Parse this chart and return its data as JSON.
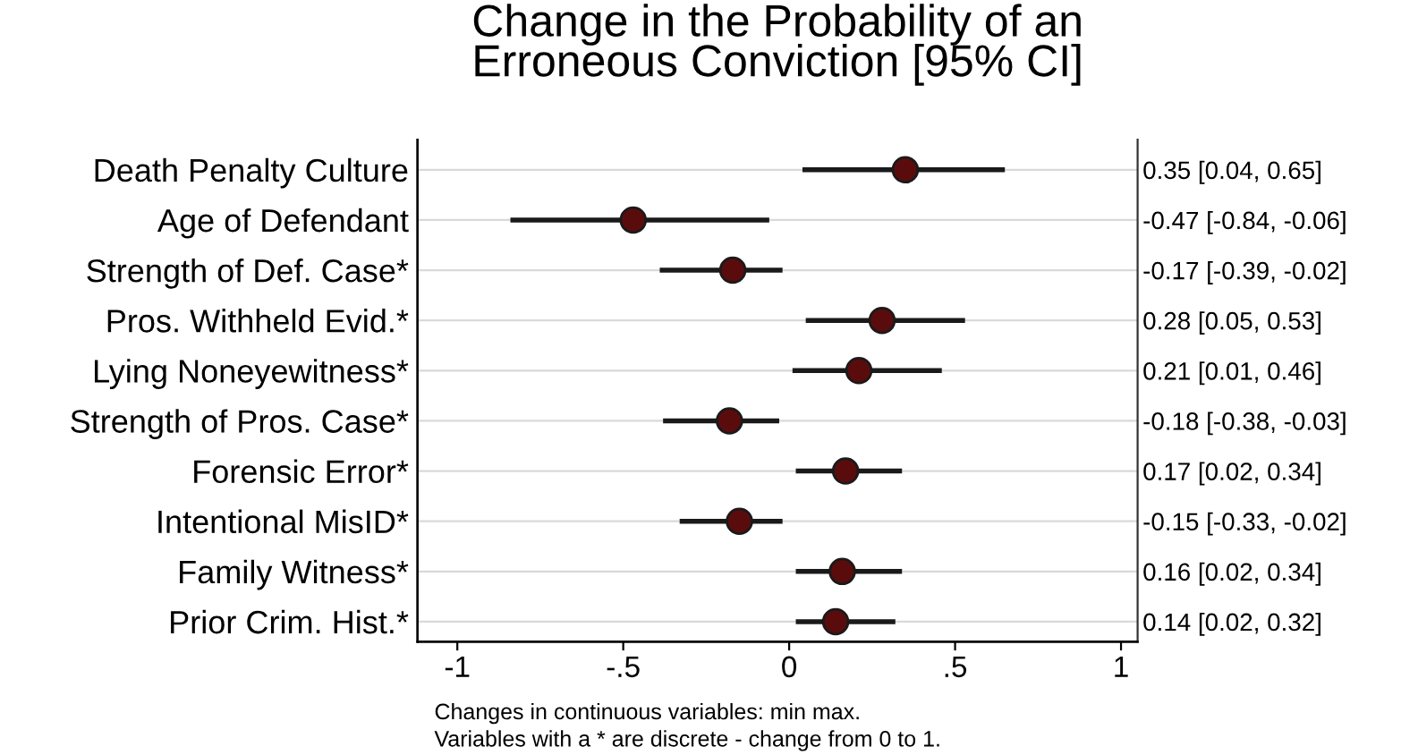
{
  "chart_data": {
    "type": "scatter",
    "orientation": "horizontal",
    "title": "Change in the Probability of an\nErroneous Conviction [95% CI]",
    "categories": [
      "Death Penalty Culture",
      "Age of Defendant",
      "Strength of Def. Case*",
      "Pros. Withheld Evid.*",
      "Lying Noneyewitness*",
      "Strength of Pros. Case*",
      "Forensic Error*",
      "Intentional MisID*",
      "Family Witness*",
      "Prior Crim. Hist.*"
    ],
    "values": [
      0.35,
      -0.47,
      -0.17,
      0.28,
      0.21,
      -0.18,
      0.17,
      -0.15,
      0.16,
      0.14
    ],
    "errors": [
      [
        0.04,
        0.65
      ],
      [
        -0.84,
        -0.06
      ],
      [
        -0.39,
        -0.02
      ],
      [
        0.05,
        0.53
      ],
      [
        0.01,
        0.46
      ],
      [
        -0.38,
        -0.03
      ],
      [
        0.02,
        0.34
      ],
      [
        -0.33,
        -0.02
      ],
      [
        0.02,
        0.34
      ],
      [
        0.02,
        0.32
      ]
    ],
    "y2_categories": [
      "0.35 [0.04, 0.65]",
      "-0.47 [-0.84, -0.06]",
      "-0.17 [-0.39, -0.02]",
      "0.28 [0.05, 0.53]",
      "0.21 [0.01, 0.46]",
      "-0.18 [-0.38, -0.03]",
      "0.17 [0.02, 0.34]",
      "-0.15 [-0.33, -0.02]",
      "0.16 [0.02, 0.34]",
      "0.14 [0.02, 0.32]"
    ],
    "color": "#5a0c0c",
    "xlim": [
      -1.12,
      1.05
    ],
    "xticks": [
      -1,
      {
        "value": -0.5,
        "label": "-.5"
      },
      0,
      {
        "value": 0.5,
        "label": ".5"
      },
      1
    ],
    "grid": "y",
    "marker": "circle",
    "annotations": [
      "Changes in continuous variables: min max.",
      "Variables with a * are discrete - change from 0 to 1."
    ]
  }
}
